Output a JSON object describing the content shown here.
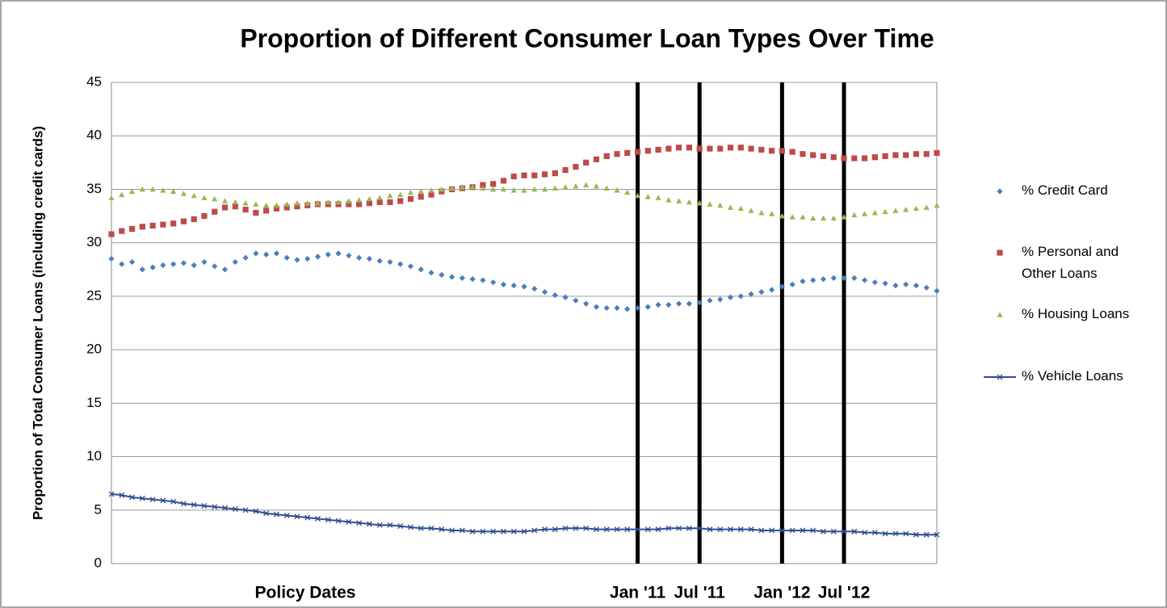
{
  "chart_data": {
    "type": "scatter",
    "title": "Proportion of Different Consumer Loan Types Over Time",
    "xlabel": "Policy Dates",
    "ylabel": "Proportion of Total Consumer Loans (including credit cards)",
    "ylim": [
      0,
      45
    ],
    "yticks": [
      0,
      5,
      10,
      15,
      20,
      25,
      30,
      35,
      40,
      45
    ],
    "grid": true,
    "legend": "right",
    "categories": [
      null,
      null,
      null,
      null,
      null,
      null,
      null,
      null,
      null,
      null,
      null,
      null,
      null,
      null,
      null,
      null,
      null,
      null,
      null,
      null,
      null,
      null,
      null,
      null,
      null,
      null,
      null,
      null,
      null,
      null,
      null,
      null,
      null,
      null,
      null,
      null,
      null,
      null,
      null,
      null,
      null,
      null,
      null,
      null,
      null,
      null,
      null,
      null,
      null,
      null,
      null,
      "Jan '11",
      null,
      null,
      null,
      null,
      null,
      "Jul '11",
      null,
      null,
      null,
      null,
      null,
      null,
      null,
      "Jan '12",
      null,
      null,
      null,
      null,
      null,
      "Jul '12",
      null,
      null,
      null,
      null,
      null,
      null,
      null,
      null,
      null
    ],
    "series": [
      {
        "name": "% Credit Card",
        "color": "#4a7ebb",
        "marker": "diamond",
        "values": [
          28.5,
          28.0,
          28.2,
          27.5,
          27.7,
          27.9,
          28.0,
          28.1,
          27.9,
          28.2,
          27.8,
          27.5,
          28.2,
          28.6,
          29.0,
          28.9,
          29.0,
          28.6,
          28.4,
          28.5,
          28.7,
          28.9,
          29.0,
          28.8,
          28.6,
          28.5,
          28.3,
          28.2,
          28.0,
          27.8,
          27.5,
          27.2,
          27.0,
          26.8,
          26.7,
          26.6,
          26.5,
          26.3,
          26.1,
          26.0,
          25.9,
          25.7,
          25.4,
          25.1,
          24.9,
          24.6,
          24.3,
          24.0,
          23.9,
          23.9,
          23.8,
          23.9,
          24.0,
          24.2,
          24.2,
          24.3,
          24.3,
          24.4,
          24.6,
          24.7,
          24.9,
          25.0,
          25.2,
          25.4,
          25.6,
          25.9,
          26.1,
          26.4,
          26.5,
          26.6,
          26.7,
          26.7,
          26.7,
          26.5,
          26.3,
          26.2,
          26.0,
          26.1,
          26.0,
          25.8,
          25.5
        ]
      },
      {
        "name": "% Personal and Other Loans",
        "color": "#be4b48",
        "marker": "square",
        "values": [
          30.8,
          31.1,
          31.3,
          31.5,
          31.6,
          31.7,
          31.8,
          32.0,
          32.2,
          32.5,
          32.9,
          33.3,
          33.4,
          33.1,
          32.8,
          33.0,
          33.2,
          33.3,
          33.4,
          33.5,
          33.6,
          33.6,
          33.6,
          33.6,
          33.6,
          33.7,
          33.8,
          33.8,
          33.9,
          34.1,
          34.3,
          34.5,
          34.8,
          35.0,
          35.1,
          35.2,
          35.4,
          35.5,
          35.8,
          36.2,
          36.3,
          36.3,
          36.4,
          36.5,
          36.8,
          37.1,
          37.5,
          37.8,
          38.1,
          38.3,
          38.4,
          38.5,
          38.6,
          38.7,
          38.8,
          38.9,
          38.9,
          38.8,
          38.8,
          38.8,
          38.9,
          38.9,
          38.8,
          38.7,
          38.6,
          38.6,
          38.5,
          38.3,
          38.2,
          38.1,
          38.0,
          37.9,
          37.9,
          37.9,
          38.0,
          38.1,
          38.2,
          38.2,
          38.3,
          38.3,
          38.4
        ]
      },
      {
        "name": "% Housing Loans",
        "color": "#98b954",
        "marker": "triangle",
        "values": [
          34.2,
          34.5,
          34.8,
          35.0,
          35.0,
          34.9,
          34.8,
          34.6,
          34.4,
          34.2,
          34.1,
          33.9,
          33.8,
          33.7,
          33.6,
          33.5,
          33.5,
          33.6,
          33.7,
          33.7,
          33.7,
          33.8,
          33.8,
          33.9,
          34.0,
          34.1,
          34.2,
          34.4,
          34.5,
          34.7,
          34.8,
          34.9,
          35.0,
          35.1,
          35.2,
          35.2,
          35.1,
          35.0,
          35.0,
          34.9,
          34.9,
          35.0,
          35.0,
          35.1,
          35.2,
          35.3,
          35.4,
          35.3,
          35.1,
          34.9,
          34.7,
          34.4,
          34.3,
          34.2,
          34.0,
          33.9,
          33.8,
          33.7,
          33.6,
          33.5,
          33.3,
          33.2,
          33.0,
          32.8,
          32.7,
          32.5,
          32.4,
          32.4,
          32.3,
          32.3,
          32.3,
          32.4,
          32.6,
          32.7,
          32.8,
          32.9,
          33.0,
          33.1,
          33.2,
          33.3,
          33.5
        ]
      },
      {
        "name": "% Vehicle Loans",
        "color": "#2c4d8f",
        "marker": "x-line",
        "values": [
          6.5,
          6.4,
          6.2,
          6.1,
          6.0,
          5.9,
          5.8,
          5.6,
          5.5,
          5.4,
          5.3,
          5.2,
          5.1,
          5.0,
          4.9,
          4.7,
          4.6,
          4.5,
          4.4,
          4.3,
          4.2,
          4.1,
          4.0,
          3.9,
          3.8,
          3.7,
          3.6,
          3.6,
          3.5,
          3.4,
          3.3,
          3.3,
          3.2,
          3.1,
          3.1,
          3.0,
          3.0,
          3.0,
          3.0,
          3.0,
          3.0,
          3.1,
          3.2,
          3.2,
          3.3,
          3.3,
          3.3,
          3.2,
          3.2,
          3.2,
          3.2,
          3.2,
          3.2,
          3.2,
          3.3,
          3.3,
          3.3,
          3.3,
          3.2,
          3.2,
          3.2,
          3.2,
          3.2,
          3.1,
          3.1,
          3.1,
          3.1,
          3.1,
          3.1,
          3.0,
          3.0,
          3.0,
          3.0,
          2.9,
          2.9,
          2.8,
          2.8,
          2.8,
          2.7,
          2.7,
          2.7
        ]
      }
    ]
  }
}
